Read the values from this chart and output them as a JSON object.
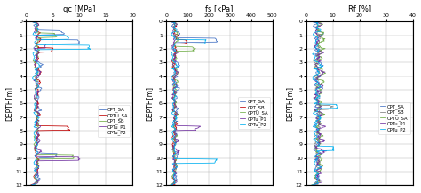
{
  "title1": "qc [MPa]",
  "title2": "fs [kPa]",
  "title3": "Rf [%]",
  "ylabel": "DEPTH[m]",
  "xlim1": [
    0,
    20
  ],
  "xlim2": [
    0,
    500
  ],
  "xlim3": [
    0,
    40
  ],
  "xticks1": [
    0,
    5,
    10,
    15,
    20
  ],
  "xticks2": [
    0,
    100,
    200,
    300,
    400,
    500
  ],
  "xticks3": [
    0,
    10,
    20,
    30,
    40
  ],
  "ylim_min": 0,
  "ylim_max": 12,
  "yticks": [
    0,
    1,
    2,
    3,
    4,
    5,
    6,
    7,
    8,
    9,
    10,
    11,
    12
  ],
  "color_SA": "#4472c4",
  "color_SB": "#7f7f7f",
  "color_CSA": "#70ad47",
  "color_P1": "#7030a0",
  "color_P2": "#00b0f0",
  "color_red": "#c00000",
  "background_color": "#ffffff",
  "grid_color": "#aaaaaa",
  "legend1": [
    "CPT_SA",
    "CPTU_SA",
    "CPT_SB",
    "CPTu_P1",
    "CPTu_P2"
  ],
  "legend2": [
    "CPT_SA",
    "CPT_SB",
    "CPTU_SA",
    "CPTu_P1",
    "CPTu_P2"
  ],
  "legend3": [
    "CPT_SA",
    "CPT_SB",
    "CPTU_SA",
    "CPTu_P1",
    "CPTu_P2"
  ]
}
